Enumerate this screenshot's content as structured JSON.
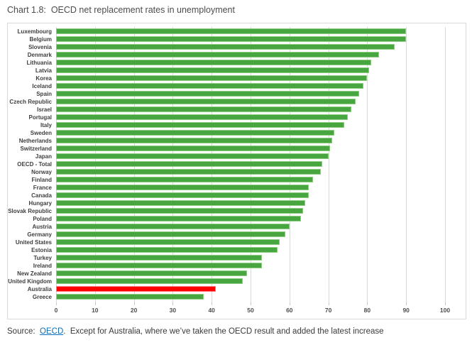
{
  "title": "Chart 1.8:  OECD net replacement rates in unemployment",
  "source": {
    "prefix": "Source:  ",
    "link_text": "OECD",
    "suffix": ".  Except for Australia, where we’ve taken the OECD result and added the latest increase"
  },
  "colors": {
    "bar_green": "#47a63f",
    "bar_green_border": "#8ecd81",
    "bar_red": "#fe0000",
    "bar_red_border": "#ff7b7b",
    "grid": "#d9d9d9",
    "axis_text": "#4d4d4d",
    "category_text": "#3f3f3f",
    "title_text": "#4c4c4c",
    "link_blue": "#0d6eb8"
  },
  "chart_data": {
    "type": "bar",
    "orientation": "horizontal",
    "title": "Chart 1.8: OECD net replacement rates in unemployment",
    "xlabel": "",
    "ylabel": "",
    "xlim": [
      0,
      100
    ],
    "xticks": [
      0,
      10,
      20,
      30,
      40,
      50,
      60,
      70,
      80,
      90,
      100
    ],
    "grid": true,
    "categories": [
      "Luxembourg",
      "Belgium",
      "Slovenia",
      "Denmark",
      "Lithuania",
      "Latvia",
      "Korea",
      "Iceland",
      "Spain",
      "Czech Republic",
      "Israel",
      "Portugal",
      "Italy",
      "Sweden",
      "Netherlands",
      "Switzerland",
      "Japan",
      "OECD - Total",
      "Norway",
      "Finland",
      "France",
      "Canada",
      "Hungary",
      "Slovak Republic",
      "Poland",
      "Austria",
      "Germany",
      "United States",
      "Estonia",
      "Turkey",
      "Ireland",
      "New Zealand",
      "United Kingdom",
      "Australia",
      "Greece"
    ],
    "values": [
      90,
      90,
      87,
      83,
      81,
      80.5,
      80,
      79,
      78,
      77,
      76,
      75,
      74,
      71.5,
      71,
      70.5,
      70,
      68.5,
      68,
      66,
      65,
      65,
      64,
      63.5,
      63,
      60,
      59,
      57.5,
      57,
      53,
      53,
      49,
      48,
      41,
      38
    ],
    "highlight_category": "Australia",
    "highlight_color": "#fe0000",
    "series_color": "#47a63f"
  }
}
